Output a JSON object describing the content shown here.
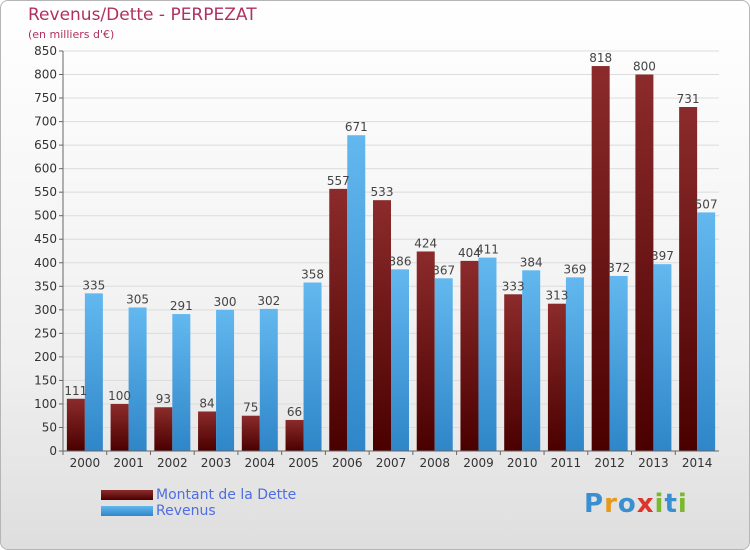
{
  "chart_data": {
    "type": "bar",
    "title": "Revenus/Dette - PERPEZAT",
    "subtitle": "(en milliers d'€)",
    "categories": [
      "2000",
      "2001",
      "2002",
      "2003",
      "2004",
      "2005",
      "2006",
      "2007",
      "2008",
      "2009",
      "2010",
      "2011",
      "2012",
      "2013",
      "2014"
    ],
    "series": [
      {
        "name": "Montant de la Dette",
        "color": "#7a1e1e",
        "values": [
          111,
          100,
          93,
          84,
          75,
          66,
          557,
          533,
          424,
          404,
          333,
          313,
          818,
          800,
          731
        ]
      },
      {
        "name": "Revenus",
        "color": "#4aa8e8",
        "values": [
          335,
          305,
          291,
          300,
          302,
          358,
          671,
          386,
          367,
          411,
          384,
          369,
          372,
          397,
          507
        ]
      }
    ],
    "ylim": [
      0,
      850
    ],
    "ytick_step": 50,
    "grid": true,
    "legend_position": "bottom-left"
  },
  "logo": {
    "letters": [
      {
        "ch": "P",
        "color": "#3a8fd0"
      },
      {
        "ch": "r",
        "color": "#e59a1a"
      },
      {
        "ch": "o",
        "color": "#3a8fd0"
      },
      {
        "ch": "x",
        "color": "#e0342a"
      },
      {
        "ch": "i",
        "color": "#7cb82e"
      },
      {
        "ch": "t",
        "color": "#3a8fd0"
      },
      {
        "ch": "i",
        "color": "#7cb82e"
      }
    ]
  }
}
